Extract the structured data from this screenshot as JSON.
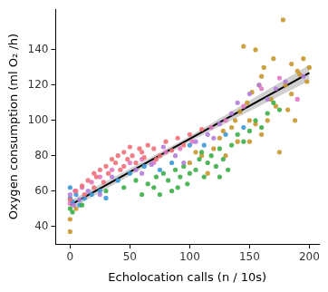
{
  "chart_data": {
    "type": "scatter",
    "x_label": "Echolocation calls (n / 10s)",
    "y_label": "Oxygen consumption (ml O₂ /h)",
    "xlim": [
      -12,
      208
    ],
    "xticks": [
      0,
      50,
      100,
      150,
      200
    ],
    "ylim": [
      30,
      163
    ],
    "yticks": [
      40,
      60,
      80,
      100,
      120,
      140
    ],
    "grid": false,
    "marker": "circle",
    "series": [
      {
        "color": "#f0707a",
        "x": [
          0,
          5,
          10,
          15,
          20,
          22,
          25,
          28,
          30,
          32,
          35,
          38,
          40,
          42,
          45,
          48,
          50,
          52,
          55,
          58,
          60,
          62,
          65,
          70,
          72,
          75,
          80,
          85,
          90,
          95,
          100,
          110,
          20,
          12,
          45
        ],
        "values": [
          55,
          60,
          63,
          66,
          70,
          68,
          72,
          65,
          74,
          70,
          78,
          76,
          80,
          72,
          82,
          78,
          85,
          80,
          76,
          84,
          82,
          79,
          86,
          84,
          78,
          80,
          88,
          83,
          90,
          86,
          92,
          95,
          62,
          58,
          74
        ]
      },
      {
        "color": "#b57edc",
        "x": [
          0,
          3,
          8,
          15,
          25,
          35,
          55,
          68,
          78,
          88,
          105,
          115,
          125,
          135,
          140,
          150,
          158,
          165,
          172,
          180,
          195,
          120,
          95,
          60
        ],
        "values": [
          58,
          52,
          55,
          60,
          58,
          68,
          72,
          75,
          85,
          80,
          88,
          92,
          98,
          104,
          110,
          115,
          120,
          112,
          118,
          122,
          125,
          90,
          76,
          70
        ]
      },
      {
        "color": "#3cae48",
        "x": [
          0,
          2,
          10,
          30,
          45,
          55,
          60,
          65,
          70,
          72,
          75,
          78,
          82,
          85,
          88,
          92,
          95,
          98,
          100,
          105,
          108,
          112,
          115,
          118,
          122,
          125,
          128,
          132,
          135,
          140,
          145,
          150,
          155,
          160,
          165,
          170,
          175,
          125,
          110,
          90
        ],
        "values": [
          50,
          48,
          52,
          60,
          62,
          66,
          58,
          64,
          62,
          68,
          58,
          70,
          66,
          60,
          72,
          68,
          74,
          64,
          70,
          72,
          78,
          68,
          76,
          80,
          74,
          84,
          78,
          72,
          86,
          92,
          88,
          94,
          100,
          96,
          104,
          110,
          106,
          68,
          82,
          62
        ]
      },
      {
        "color": "#c8962e",
        "x": [
          0,
          0,
          5,
          100,
          105,
          110,
          115,
          120,
          125,
          128,
          130,
          135,
          138,
          140,
          142,
          145,
          148,
          150,
          152,
          155,
          158,
          160,
          162,
          165,
          168,
          170,
          172,
          175,
          178,
          180,
          182,
          185,
          188,
          190,
          192,
          195,
          198,
          200,
          155,
          160,
          150,
          185
        ],
        "values": [
          44,
          37,
          50,
          76,
          82,
          80,
          70,
          84,
          90,
          94,
          80,
          96,
          100,
          88,
          105,
          142,
          110,
          100,
          116,
          98,
          120,
          92,
          130,
          100,
          112,
          135,
          108,
          82,
          157,
          120,
          106,
          115,
          100,
          128,
          126,
          135,
          122,
          130,
          140,
          125,
          88,
          132
        ]
      },
      {
        "color": "#3a9ad9",
        "x": [
          0,
          0,
          2,
          5,
          8,
          12,
          18,
          25,
          30,
          40,
          50,
          62,
          75,
          85,
          100,
          112,
          130,
          145
        ],
        "values": [
          56,
          62,
          54,
          58,
          52,
          56,
          58,
          60,
          56,
          66,
          70,
          74,
          72,
          76,
          86,
          86,
          92,
          96
        ]
      },
      {
        "color": "#e377c2",
        "x": [
          0,
          4,
          10,
          18,
          25,
          35,
          50,
          60,
          70,
          80,
          92,
          102,
          118,
          130,
          145,
          160,
          175,
          190
        ],
        "values": [
          53,
          60,
          62,
          65,
          68,
          72,
          76,
          78,
          76,
          82,
          84,
          88,
          96,
          100,
          108,
          118,
          124,
          112
        ]
      },
      {
        "type": "line",
        "color": "#000000",
        "x": [
          0,
          100,
          200
        ],
        "values": [
          52,
          89.5,
          127
        ],
        "lower": [
          49.5,
          88,
          122.5
        ],
        "upper": [
          54.5,
          91,
          131.5
        ]
      }
    ]
  }
}
